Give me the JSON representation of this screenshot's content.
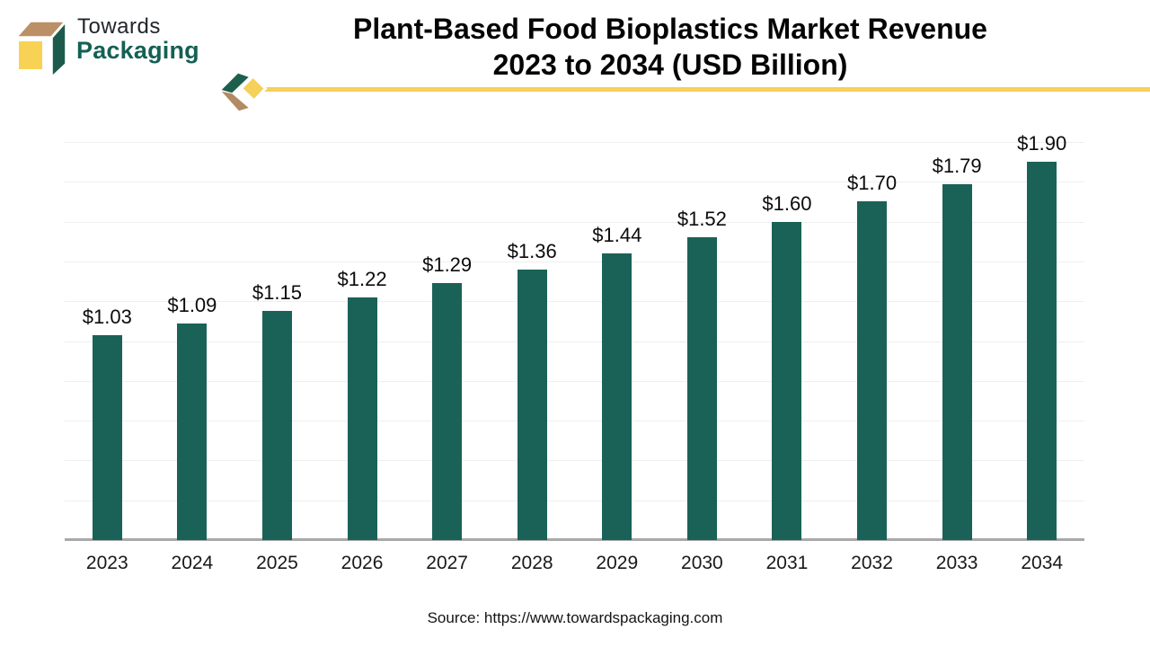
{
  "brand": {
    "name_line1": "Towards",
    "name_line2": "Packaging"
  },
  "title": {
    "line1": "Plant-Based Food Bioplastics Market Revenue",
    "line2": "2023 to 2034 (USD Billion)"
  },
  "source_text": "Source: https://www.towardspackaging.com",
  "colors": {
    "bar": "#1A6257",
    "accent_yellow": "#F5D05A",
    "logo_cube_green": "#1C5B4B",
    "logo_cube_tan": "#BC9066",
    "logo_cube_yellow": "#F7D254",
    "logo_text_green": "#156055",
    "deco_green": "#1D5F4D",
    "deco_tan": "#B28A63",
    "gridline": "#EFEFEF",
    "axis": "#A9A9A9"
  },
  "icons": {
    "logo_cube": "cube-box-logo-icon",
    "header_chevron": "chevron-diamond-icon"
  },
  "chart_data": {
    "type": "bar",
    "title": "Plant-Based Food Bioplastics Market Revenue 2023 to 2034 (USD Billion)",
    "categories": [
      "2023",
      "2024",
      "2025",
      "2026",
      "2027",
      "2028",
      "2029",
      "2030",
      "2031",
      "2032",
      "2033",
      "2034"
    ],
    "values": [
      1.03,
      1.09,
      1.15,
      1.22,
      1.29,
      1.36,
      1.44,
      1.52,
      1.6,
      1.7,
      1.79,
      1.9
    ],
    "value_labels": [
      "$1.03",
      "$1.09",
      "$1.15",
      "$1.22",
      "$1.29",
      "$1.36",
      "$1.44",
      "$1.52",
      "$1.60",
      "$1.70",
      "$1.79",
      "$1.90"
    ],
    "xlabel": "",
    "ylabel": "",
    "ylim": [
      0,
      2.0
    ],
    "gridline_step": 0.2,
    "grid": true,
    "legend": false,
    "bar_color": "#1A6257"
  }
}
